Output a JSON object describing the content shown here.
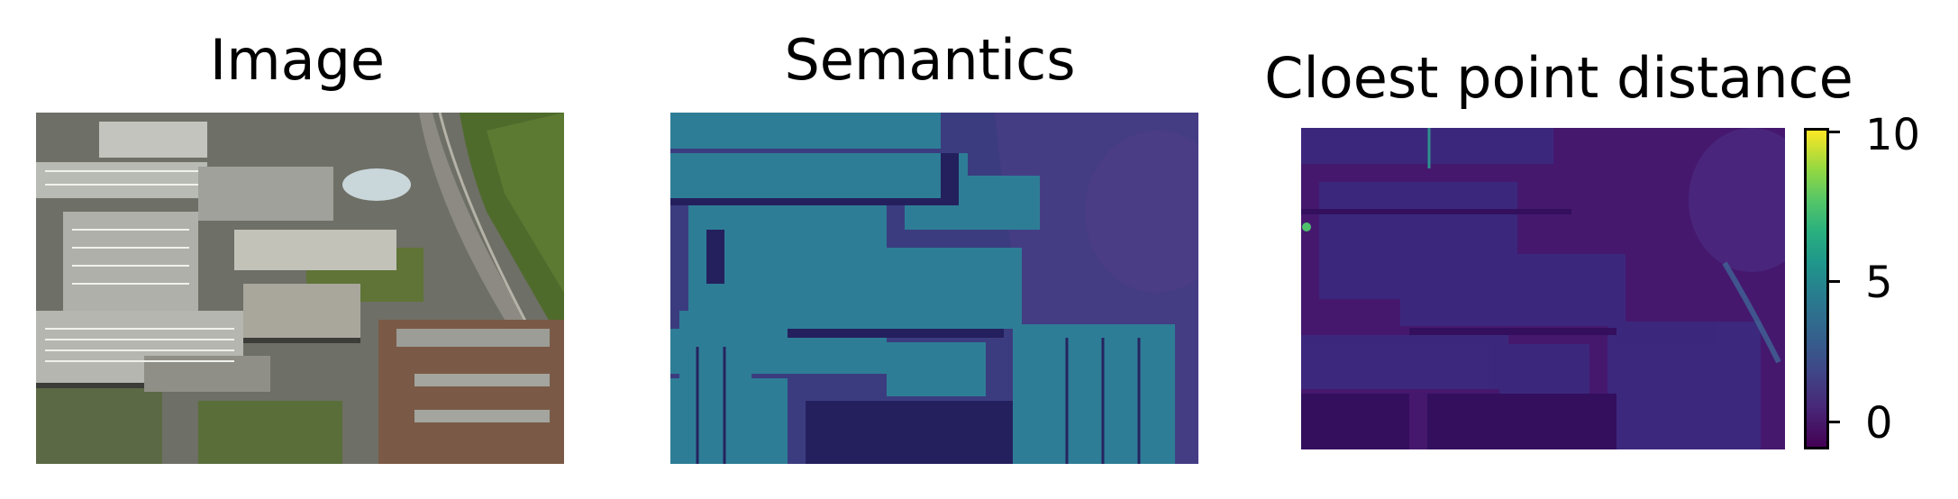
{
  "panels": [
    {
      "title": "Image",
      "kind": "aerial photograph"
    },
    {
      "title": "Semantics",
      "kind": "semantic map"
    },
    {
      "title": "Cloest point distance",
      "kind": "distance map"
    }
  ],
  "colorbar": {
    "colormap": "viridis",
    "ticks": [
      "10",
      "5",
      "0"
    ],
    "tick_values": [
      10,
      5,
      0
    ],
    "range": [
      -1,
      10.5
    ]
  },
  "colors": {
    "viridis_dark": "#440154",
    "viridis_mid": "#21918c",
    "viridis_yellow": "#fde725"
  }
}
